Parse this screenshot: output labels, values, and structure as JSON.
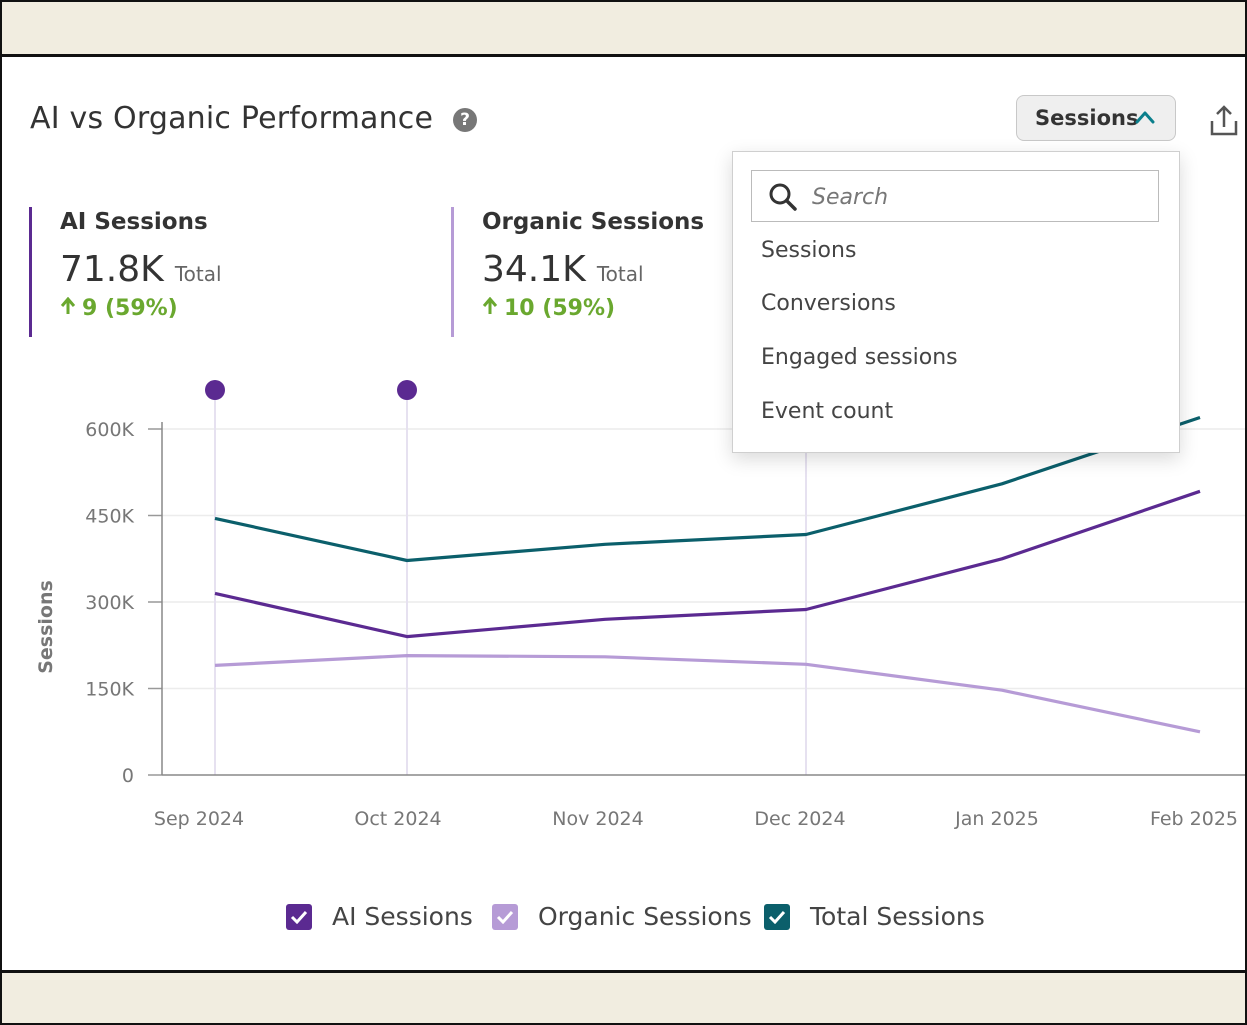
{
  "header": {
    "title": "AI vs Organic Performance",
    "metric_selected": "Sessions"
  },
  "kpis": [
    {
      "label": "AI Sessions",
      "value": "71.8K",
      "suffix": "Total",
      "change": "9 (59%)",
      "color": "#5b2a91"
    },
    {
      "label": "Organic Sessions",
      "value": "34.1K",
      "suffix": "Total",
      "change": "10 (59%)",
      "color": "#b69bd6"
    }
  ],
  "dropdown": {
    "search_placeholder": "Search",
    "options": [
      "Sessions",
      "Conversions",
      "Engaged sessions",
      "Event count"
    ]
  },
  "legend": [
    {
      "label": "AI Sessions",
      "color": "#5b2a91"
    },
    {
      "label": "Organic Sessions",
      "color": "#b69bd6"
    },
    {
      "label": "Total Sessions",
      "color": "#0b5f6b"
    }
  ],
  "chart_data": {
    "type": "line",
    "title": "AI vs Organic Performance",
    "xlabel": "",
    "ylabel": "Sessions",
    "categories": [
      "Sep 2024",
      "Oct 2024",
      "Nov 2024",
      "Dec 2024",
      "Jan 2025",
      "Feb 2025"
    ],
    "ylim": [
      0,
      600000
    ],
    "yticks": [
      0,
      150000,
      300000,
      450000,
      600000
    ],
    "ytick_labels": [
      "0",
      "150K",
      "300K",
      "450K",
      "600K"
    ],
    "annotation_markers": [
      "Sep 2024",
      "Oct 2024"
    ],
    "highlight_lines": [
      "Sep 2024",
      "Oct 2024",
      "Dec 2024"
    ],
    "series": [
      {
        "name": "Total Sessions",
        "color": "#0b5f6b",
        "values": [
          445000,
          372000,
          400000,
          417000,
          505000,
          620000
        ]
      },
      {
        "name": "AI Sessions",
        "color": "#5b2a91",
        "values": [
          315000,
          240000,
          270000,
          287000,
          375000,
          492000
        ]
      },
      {
        "name": "Organic Sessions",
        "color": "#b69bd6",
        "values": [
          190000,
          207000,
          205000,
          192000,
          147000,
          75000
        ]
      }
    ]
  }
}
